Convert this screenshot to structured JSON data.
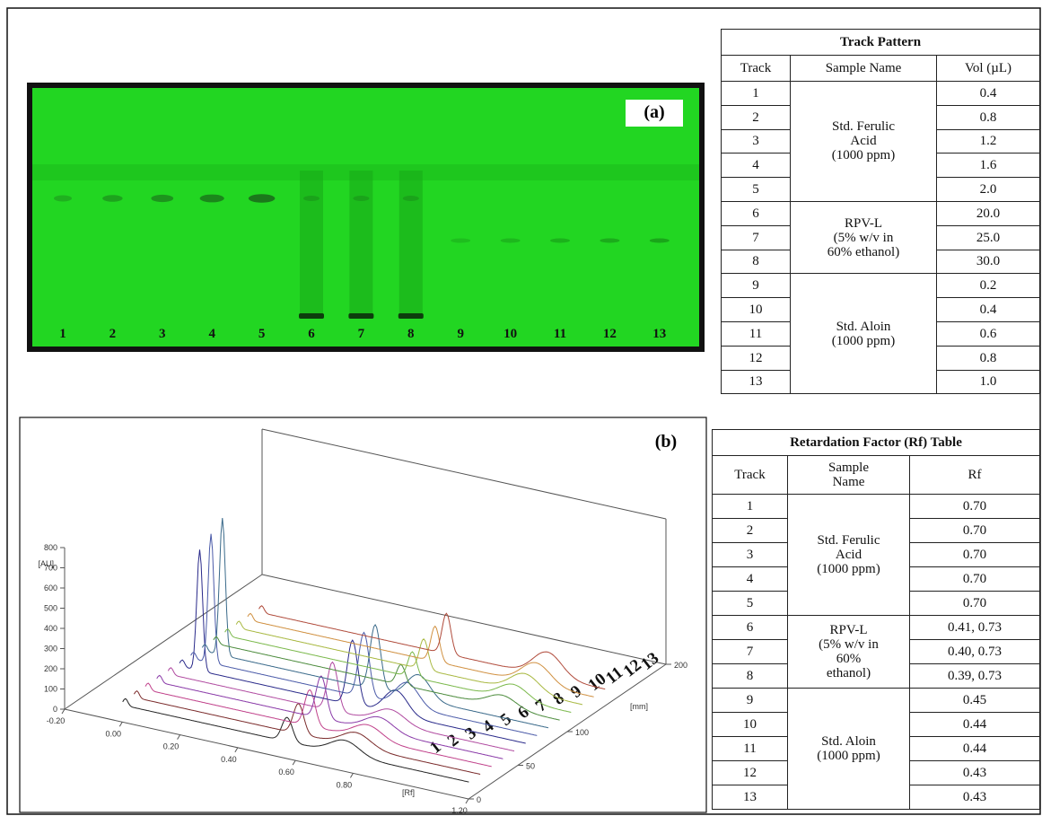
{
  "panel_a": {
    "label": "(a)",
    "lane_labels": [
      1,
      2,
      3,
      4,
      5,
      6,
      7,
      8,
      9,
      10,
      11,
      12,
      13
    ]
  },
  "track_pattern": {
    "title": "Track Pattern",
    "headers": [
      [
        "Track"
      ],
      [
        "Sample Name"
      ],
      [
        "Vol (µL)"
      ]
    ],
    "groups": [
      {
        "sample_name": [
          "Std. Ferulic",
          "Acid",
          "(1000 ppm)"
        ],
        "rows": [
          [
            "1",
            "0.4"
          ],
          [
            "2",
            "0.8"
          ],
          [
            "3",
            "1.2"
          ],
          [
            "4",
            "1.6"
          ],
          [
            "5",
            "2.0"
          ]
        ]
      },
      {
        "sample_name": [
          "RPV-L",
          "(5% w/v in",
          "60% ethanol)"
        ],
        "rows": [
          [
            "6",
            "20.0"
          ],
          [
            "7",
            "25.0"
          ],
          [
            "8",
            "30.0"
          ]
        ]
      },
      {
        "sample_name": [
          "Std. Aloin",
          "(1000 ppm)"
        ],
        "rows": [
          [
            "9",
            "0.2"
          ],
          [
            "10",
            "0.4"
          ],
          [
            "11",
            "0.6"
          ],
          [
            "12",
            "0.8"
          ],
          [
            "13",
            "1.0"
          ]
        ]
      }
    ]
  },
  "panel_b": {
    "label": "(b)",
    "y_axis_label": "[AU]",
    "x_axis_label": "[Rf]",
    "z_axis_label": "[mm]",
    "yticks": [
      0,
      100,
      200,
      300,
      400,
      500,
      600,
      700,
      800
    ],
    "xticks": [
      {
        "value": -0.2,
        "label": "-0.20"
      },
      {
        "value": 0,
        "label": "0.00"
      },
      {
        "value": 0.2,
        "label": "0.20"
      },
      {
        "value": 0.4,
        "label": "0.40"
      },
      {
        "value": 0.6,
        "label": "0.60"
      },
      {
        "value": 0.8,
        "label": "0.80"
      },
      {
        "value": 1.2,
        "label": "1.20"
      }
    ],
    "zticks": [
      0,
      50,
      100,
      200
    ],
    "track_labels": [
      1,
      2,
      3,
      4,
      5,
      6,
      7,
      8,
      9,
      10,
      11,
      12,
      13
    ]
  },
  "rf_table": {
    "title": "Retardation Factor (Rf) Table",
    "headers": [
      [
        "Track"
      ],
      [
        "Sample",
        "Name"
      ],
      [
        "Rf"
      ]
    ],
    "groups": [
      {
        "sample_name": [
          "Std. Ferulic",
          "Acid",
          "(1000 ppm)"
        ],
        "rows": [
          [
            "1",
            "0.70"
          ],
          [
            "2",
            "0.70"
          ],
          [
            "3",
            "0.70"
          ],
          [
            "4",
            "0.70"
          ],
          [
            "5",
            "0.70"
          ]
        ]
      },
      {
        "sample_name": [
          "RPV-L",
          "(5% w/v in",
          "60%",
          "ethanol)"
        ],
        "rows": [
          [
            "6",
            "0.41, 0.73"
          ],
          [
            "7",
            "0.40, 0.73"
          ],
          [
            "8",
            "0.39, 0.73"
          ]
        ]
      },
      {
        "sample_name": [
          "Std. Aloin",
          "(1000 ppm)"
        ],
        "rows": [
          [
            "9",
            "0.45"
          ],
          [
            "10",
            "0.44"
          ],
          [
            "11",
            "0.44"
          ],
          [
            "12",
            "0.43"
          ],
          [
            "13",
            "0.43"
          ]
        ]
      }
    ]
  }
}
